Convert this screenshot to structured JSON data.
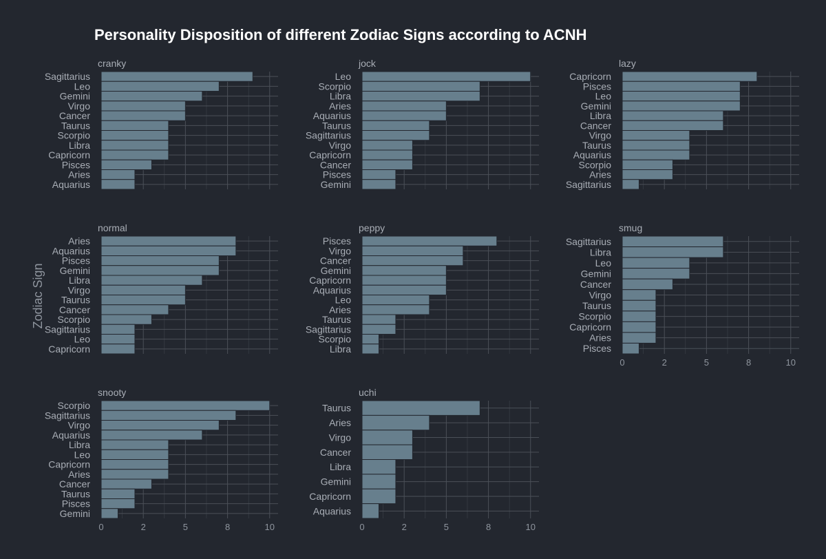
{
  "chart_data": {
    "type": "bar",
    "orientation": "horizontal",
    "title": "Personality Disposition of different Zodiac Signs according to ACNH",
    "xlabel": "",
    "ylabel": "Zodiac Sign",
    "xlim": [
      0,
      10.5
    ],
    "xticks": [
      0,
      2.5,
      5,
      7.5,
      10
    ],
    "xtick_labels": [
      "0",
      "2",
      "5",
      "8",
      "10"
    ],
    "grid": true,
    "bar_color": "#677f8d",
    "background_color": "#23272f",
    "panels": [
      {
        "name": "cranky",
        "categories": [
          "Sagittarius",
          "Leo",
          "Gemini",
          "Virgo",
          "Cancer",
          "Taurus",
          "Scorpio",
          "Libra",
          "Capricorn",
          "Pisces",
          "Aries",
          "Aquarius"
        ],
        "values": [
          9,
          7,
          6,
          5,
          5,
          4,
          4,
          4,
          4,
          3,
          2,
          2
        ]
      },
      {
        "name": "jock",
        "categories": [
          "Leo",
          "Scorpio",
          "Libra",
          "Aries",
          "Aquarius",
          "Taurus",
          "Sagittarius",
          "Virgo",
          "Capricorn",
          "Cancer",
          "Pisces",
          "Gemini"
        ],
        "values": [
          10,
          7,
          7,
          5,
          5,
          4,
          4,
          3,
          3,
          3,
          2,
          2
        ]
      },
      {
        "name": "lazy",
        "categories": [
          "Capricorn",
          "Pisces",
          "Leo",
          "Gemini",
          "Libra",
          "Cancer",
          "Virgo",
          "Taurus",
          "Aquarius",
          "Scorpio",
          "Aries",
          "Sagittarius"
        ],
        "values": [
          8,
          7,
          7,
          7,
          6,
          6,
          4,
          4,
          4,
          3,
          3,
          1
        ]
      },
      {
        "name": "normal",
        "categories": [
          "Aries",
          "Aquarius",
          "Pisces",
          "Gemini",
          "Libra",
          "Virgo",
          "Taurus",
          "Cancer",
          "Scorpio",
          "Sagittarius",
          "Leo",
          "Capricorn"
        ],
        "values": [
          8,
          8,
          7,
          7,
          6,
          5,
          5,
          4,
          3,
          2,
          2,
          2
        ]
      },
      {
        "name": "peppy",
        "categories": [
          "Pisces",
          "Virgo",
          "Cancer",
          "Gemini",
          "Capricorn",
          "Aquarius",
          "Leo",
          "Aries",
          "Taurus",
          "Sagittarius",
          "Scorpio",
          "Libra"
        ],
        "values": [
          8,
          6,
          6,
          5,
          5,
          5,
          4,
          4,
          2,
          2,
          1,
          1
        ]
      },
      {
        "name": "smug",
        "categories": [
          "Sagittarius",
          "Libra",
          "Leo",
          "Gemini",
          "Cancer",
          "Virgo",
          "Taurus",
          "Scorpio",
          "Capricorn",
          "Aries",
          "Pisces"
        ],
        "values": [
          6,
          6,
          4,
          4,
          3,
          2,
          2,
          2,
          2,
          2,
          1
        ]
      },
      {
        "name": "snooty",
        "categories": [
          "Scorpio",
          "Sagittarius",
          "Virgo",
          "Aquarius",
          "Libra",
          "Leo",
          "Capricorn",
          "Aries",
          "Cancer",
          "Taurus",
          "Pisces",
          "Gemini"
        ],
        "values": [
          10,
          8,
          7,
          6,
          4,
          4,
          4,
          4,
          3,
          2,
          2,
          1
        ]
      },
      {
        "name": "uchi",
        "categories": [
          "Taurus",
          "Aries",
          "Virgo",
          "Cancer",
          "Libra",
          "Gemini",
          "Capricorn",
          "Aquarius"
        ],
        "values": [
          7,
          4,
          3,
          3,
          2,
          2,
          2,
          1
        ]
      }
    ]
  }
}
